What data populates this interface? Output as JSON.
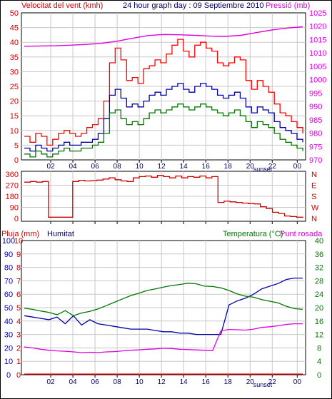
{
  "header": {
    "left_title": "Velocitat del vent (kmh)",
    "center_title": "24 hour graph day : 09 Septiembre 2010",
    "right_title": "Pressió (mb)"
  },
  "colors": {
    "red": "#ff0000",
    "dark_red": "#cc0000",
    "blue": "#0000aa",
    "green": "#007700",
    "magenta": "#dd00dd",
    "grid": "#c8c8c8",
    "text_dark": "#000066"
  },
  "chart_data": [
    {
      "id": "wind",
      "type": "line",
      "left_axis": {
        "label": "Velocitat del vent (kmh)",
        "ticks": [
          0,
          5,
          10,
          15,
          20,
          25,
          30,
          35,
          40,
          45,
          50
        ],
        "range": [
          0,
          50
        ]
      },
      "right_axis": {
        "label": "Pressió (mb)",
        "ticks": [
          970,
          975,
          980,
          985,
          990,
          995,
          1000,
          1005,
          1010,
          1015,
          1020,
          1025
        ],
        "range": [
          970,
          1025
        ]
      },
      "x_ticks": [
        "02",
        "04",
        "06",
        "08",
        "10",
        "12",
        "14",
        "16",
        "18",
        "20",
        "22",
        "00"
      ],
      "x_annotation": "sunset",
      "series": [
        {
          "role": "gust",
          "color": "#ff0000",
          "axis": "left",
          "values": [
            8,
            6,
            9,
            8,
            5,
            7,
            9,
            10,
            9,
            8,
            9,
            11,
            12,
            14,
            20,
            33,
            38,
            34,
            27,
            28,
            26,
            31,
            32,
            34,
            33,
            36,
            39,
            41,
            37,
            35,
            39,
            40,
            38,
            37,
            33,
            32,
            33,
            35,
            34,
            27,
            24,
            27,
            25,
            23,
            19,
            16,
            15,
            13,
            11,
            9
          ]
        },
        {
          "role": "average",
          "color": "#0000aa",
          "axis": "left",
          "values": [
            4,
            3,
            5,
            4,
            3,
            4,
            5,
            6,
            5,
            5,
            6,
            6,
            7,
            9,
            14,
            22,
            24,
            21,
            18,
            19,
            18,
            20,
            22,
            23,
            22,
            24,
            25,
            26,
            24,
            23,
            25,
            26,
            25,
            24,
            22,
            21,
            22,
            23,
            21,
            18,
            16,
            18,
            17,
            16,
            13,
            11,
            10,
            9,
            7,
            6
          ]
        },
        {
          "role": "minimum",
          "color": "#007700",
          "axis": "left",
          "values": [
            2,
            1,
            3,
            2,
            1,
            2,
            3,
            4,
            3,
            3,
            4,
            4,
            5,
            6,
            9,
            16,
            17,
            14,
            12,
            13,
            12,
            14,
            16,
            17,
            16,
            17,
            18,
            19,
            18,
            17,
            18,
            19,
            18,
            17,
            16,
            15,
            16,
            17,
            15,
            13,
            11,
            13,
            12,
            11,
            9,
            7,
            6,
            5,
            4,
            3
          ]
        },
        {
          "role": "pressure",
          "color": "#dd00dd",
          "axis": "right",
          "values": [
            1012.5,
            1012.6,
            1012.7,
            1012.9,
            1013.2,
            1013.6,
            1014.4,
            1015.5,
            1016.5,
            1016.9,
            1016.8,
            1016.6,
            1016.3,
            1016.2,
            1016.6,
            1017.6,
            1018.6,
            1019.3,
            1019.8
          ]
        }
      ]
    },
    {
      "id": "direction",
      "type": "line",
      "left_axis": {
        "ticks": [
          0,
          90,
          180,
          270,
          360
        ],
        "range": [
          0,
          360
        ]
      },
      "right_axis": {
        "ticks": [
          "N",
          "W",
          "S",
          "E",
          "N"
        ]
      },
      "x_ticks": [
        "02",
        "04",
        "06",
        "08",
        "10",
        "12",
        "14",
        "16",
        "18",
        "20",
        "22",
        "00"
      ],
      "series": [
        {
          "role": "direction",
          "color": "#cc0000",
          "values": [
            295,
            300,
            295,
            300,
            10,
            10,
            10,
            10,
            300,
            310,
            305,
            308,
            312,
            320,
            330,
            315,
            305,
            300,
            330,
            340,
            345,
            335,
            350,
            340,
            330,
            345,
            330,
            340,
            335,
            345,
            330,
            340,
            130,
            140,
            135,
            130,
            125,
            120,
            118,
            95,
            80,
            50,
            40,
            20,
            15,
            10,
            5
          ]
        }
      ]
    },
    {
      "id": "rain_hum_temp",
      "type": "line",
      "left_axis_outer": {
        "label": "Pluja (mm)",
        "ticks": [
          0,
          1,
          2,
          3,
          4,
          5,
          6,
          7,
          8,
          9,
          10
        ]
      },
      "left_axis_inner": {
        "label": "Humitat",
        "ticks": [
          0,
          10,
          20,
          30,
          40,
          50,
          60,
          70,
          80,
          90,
          100
        ]
      },
      "right_axis": {
        "label": "Temperatura (°C)",
        "ticks": [
          0,
          4,
          8,
          12,
          16,
          20,
          24,
          28,
          32,
          36,
          40
        ],
        "range": [
          0,
          40
        ]
      },
      "right_axis_extra_label": "Punt rosada",
      "x_ticks": [
        "02",
        "04",
        "06",
        "08",
        "10",
        "12",
        "14",
        "16",
        "18",
        "20",
        "22",
        "00"
      ],
      "x_annotation": "sunset",
      "series": [
        {
          "role": "rain",
          "color": "#ff0000",
          "axis": "outer_left",
          "values": [
            0,
            0
          ]
        },
        {
          "role": "humidity",
          "color": "#0000aa",
          "axis": "inner_left",
          "values": [
            44,
            43,
            42,
            41,
            43,
            38,
            44,
            37,
            41,
            38,
            37,
            36,
            35,
            34,
            34,
            34,
            33,
            32,
            32,
            31,
            31,
            30,
            30,
            30,
            30,
            52,
            55,
            57,
            60,
            64,
            66,
            68,
            71,
            72,
            72
          ]
        },
        {
          "role": "temperature",
          "color": "#007700",
          "axis": "right",
          "values": [
            19.8,
            19.5,
            19.0,
            18.6,
            17.9,
            19.1,
            17.6,
            18.4,
            18.9,
            19.6,
            20.6,
            21.6,
            22.6,
            23.6,
            24.3,
            25.1,
            25.6,
            26.1,
            26.6,
            26.9,
            27.3,
            27.1,
            26.4,
            26.3,
            25.9,
            25.1,
            24.1,
            23.4,
            23.1,
            22.4,
            21.9,
            21.4,
            20.4,
            19.7,
            19.5
          ]
        },
        {
          "role": "dew_point",
          "color": "#dd00dd",
          "axis": "right",
          "values": [
            8.3,
            8.0,
            7.6,
            7.3,
            7.1,
            7.0,
            6.8,
            6.6,
            6.7,
            6.6,
            6.8,
            6.9,
            7.1,
            7.3,
            7.4,
            7.6,
            7.7,
            7.9,
            7.8,
            7.6,
            7.5,
            7.4,
            7.3,
            7.2,
            13.1,
            13.5,
            13.4,
            13.3,
            13.6,
            14.1,
            14.3,
            14.6,
            15.0,
            15.2,
            15.2
          ]
        }
      ]
    }
  ]
}
